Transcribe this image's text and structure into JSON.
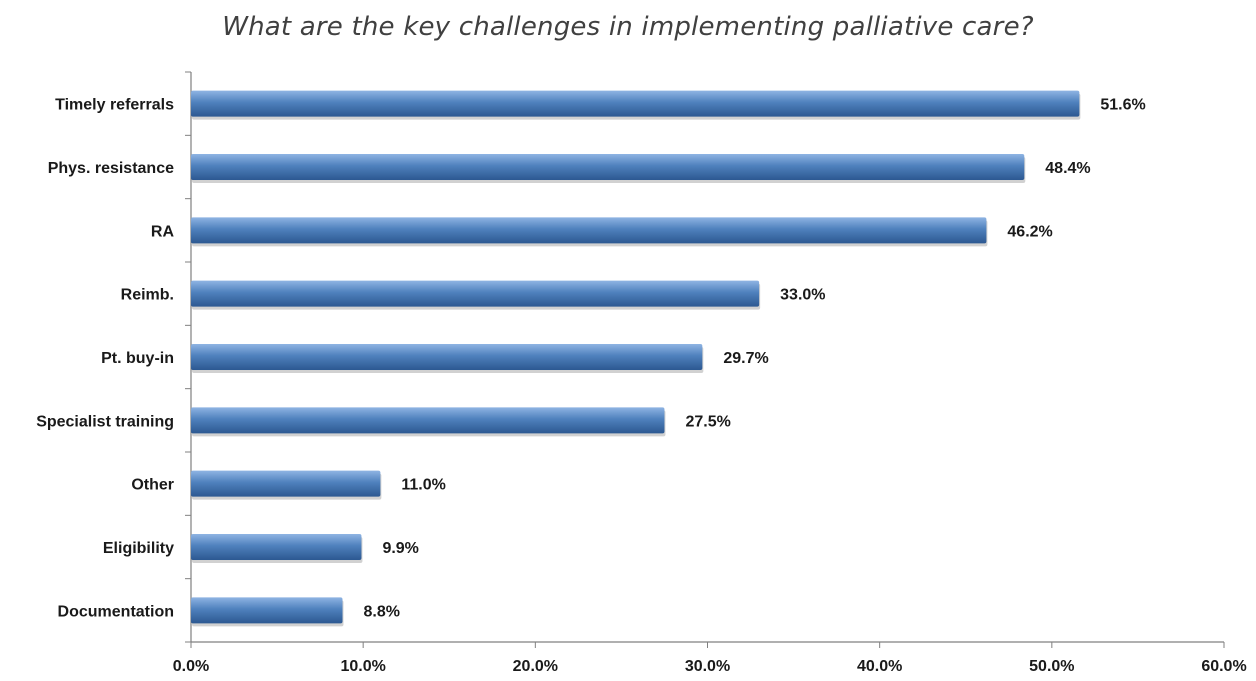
{
  "chart_data": {
    "type": "bar",
    "orientation": "horizontal",
    "title": "What are the key challenges in implementing palliative care?",
    "categories": [
      "Timely referrals",
      "Phys. resistance",
      "RA",
      "Reimb.",
      "Pt. buy-in",
      "Specialist training",
      "Other",
      "Eligibility",
      "Documentation"
    ],
    "values": [
      51.6,
      48.4,
      46.2,
      33.0,
      29.7,
      27.5,
      11.0,
      9.9,
      8.8
    ],
    "value_labels": [
      "51.6%",
      "48.4%",
      "46.2%",
      "33.0%",
      "29.7%",
      "27.5%",
      "11.0%",
      "9.9%",
      "8.8%"
    ],
    "xlim": [
      0,
      60
    ],
    "x_ticks": [
      0,
      10,
      20,
      30,
      40,
      50,
      60
    ],
    "x_tick_labels": [
      "0.0%",
      "10.0%",
      "20.0%",
      "30.0%",
      "40.0%",
      "50.0%",
      "60.0%"
    ],
    "xlabel": "",
    "ylabel": "",
    "grid": false,
    "legend": "none",
    "colors": {
      "bar_light": "#8fb4e3",
      "bar_mid": "#4f81bd",
      "bar_dark": "#2c5891",
      "axis": "#808080"
    }
  }
}
